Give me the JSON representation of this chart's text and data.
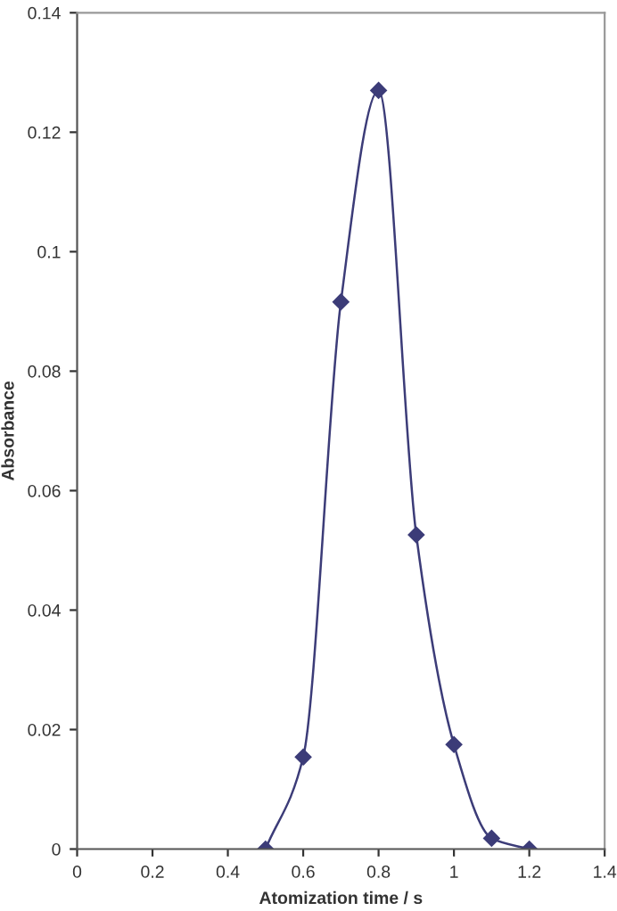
{
  "chart_data": {
    "type": "line",
    "xlabel": "Atomization time / s",
    "ylabel": "Absorbance",
    "x": [
      0.5,
      0.6,
      0.7,
      0.8,
      0.9,
      1.0,
      1.1,
      1.2
    ],
    "series": [
      {
        "color": "#3c3c78",
        "values": [
          0,
          0.0154,
          0.0916,
          0.127,
          0.0526,
          0.0175,
          0.0018,
          0
        ]
      }
    ],
    "xlim": [
      0,
      1.4
    ],
    "xticks": [
      0,
      0.2,
      0.4,
      0.6,
      0.8,
      1,
      1.2,
      1.4
    ],
    "ylim": [
      0,
      0.14
    ],
    "yticks": [
      0,
      0.02,
      0.04,
      0.06,
      0.08,
      0.1,
      0.12,
      0.14
    ],
    "marker": "diamond",
    "line_style": "solid",
    "grid": false,
    "legend": false
  }
}
